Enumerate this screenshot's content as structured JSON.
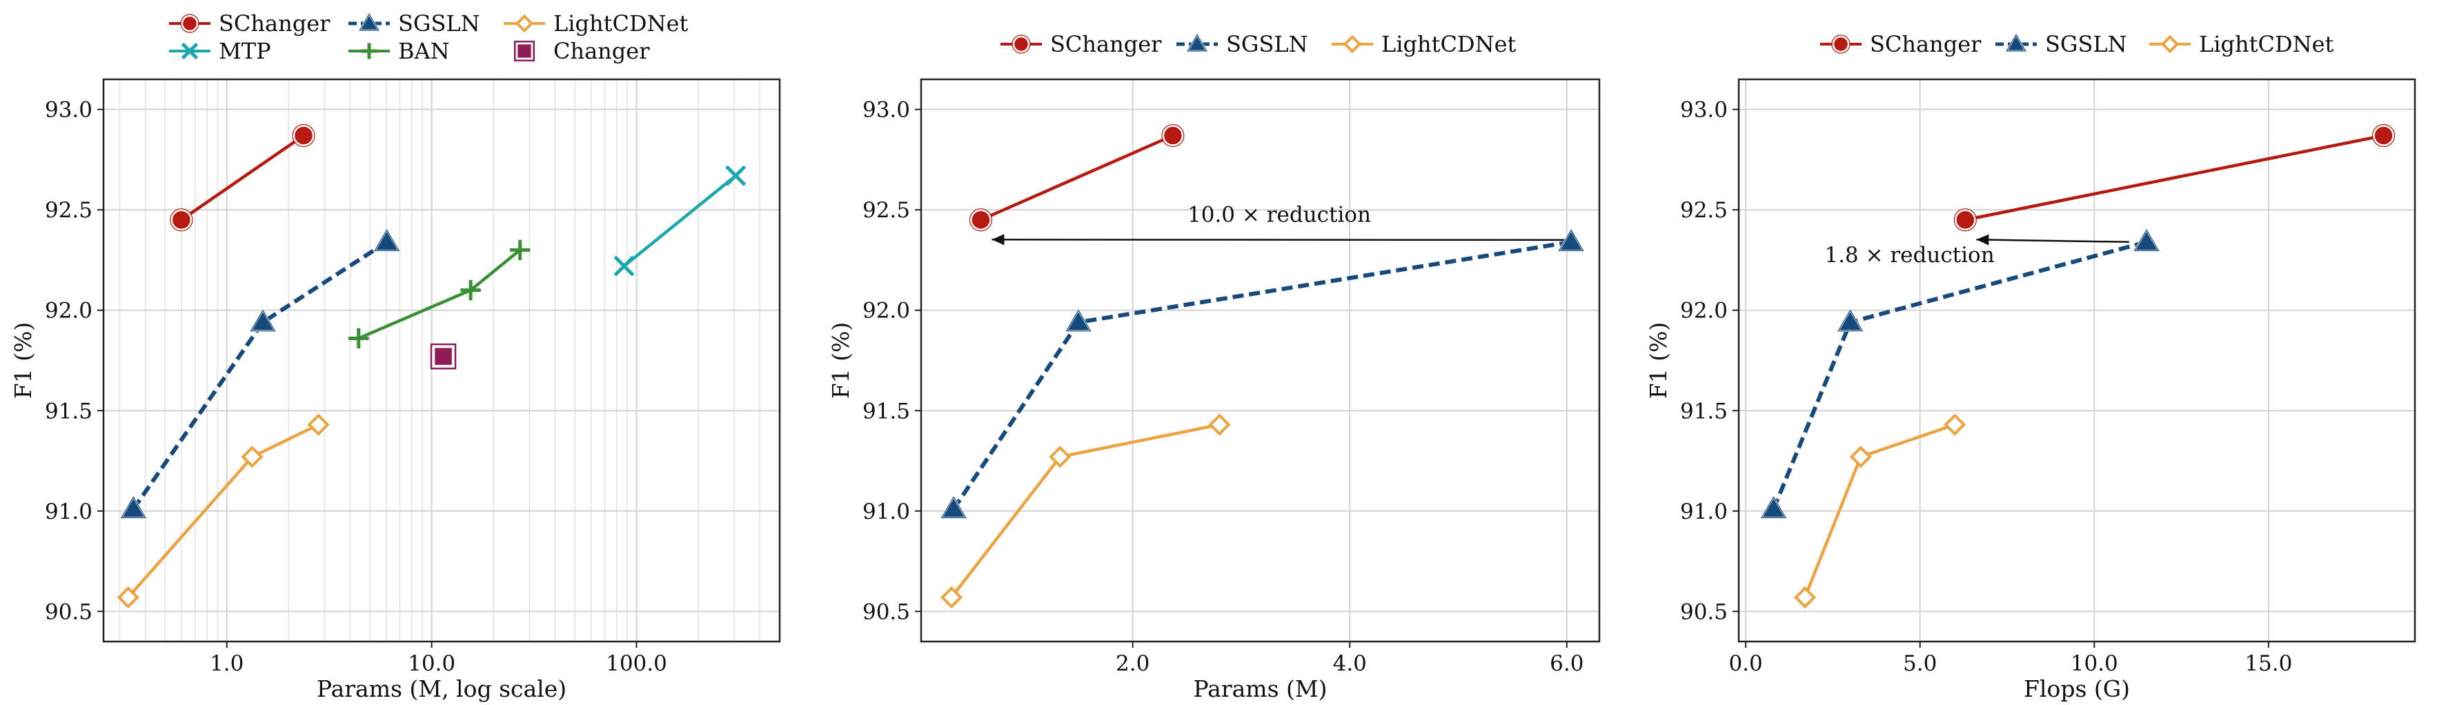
{
  "colors": {
    "SChanger": "#b5190f",
    "SGSLN": "#174a7c",
    "LightCDNet": "#eba441",
    "MTP": "#1aa7b0",
    "BAN": "#3a8e33",
    "Changer": "#8e1a56",
    "grid": "#d4d4d4",
    "axis": "#222222"
  },
  "chart_data": [
    {
      "type": "line",
      "xlabel": "Params (M, log scale)",
      "ylabel": "F1 (%)",
      "xscale": "log",
      "xlim": [
        0.25,
        500
      ],
      "ylim": [
        90.35,
        93.15
      ],
      "xticks": [
        {
          "v": 1,
          "label": "1.0"
        },
        {
          "v": 10,
          "label": "10.0"
        },
        {
          "v": 100,
          "label": "100.0"
        }
      ],
      "yticks": [
        {
          "v": 90.5,
          "label": "90.5"
        },
        {
          "v": 91.0,
          "label": "91.0"
        },
        {
          "v": 91.5,
          "label": "91.5"
        },
        {
          "v": 92.0,
          "label": "92.0"
        },
        {
          "v": 92.5,
          "label": "92.5"
        },
        {
          "v": 93.0,
          "label": "93.0"
        }
      ],
      "grid": true,
      "minor_grid": true,
      "legend_position": "top",
      "legend": [
        "SChanger",
        "SGSLN",
        "LightCDNet",
        "MTP",
        "BAN",
        "Changer"
      ],
      "series": [
        {
          "name": "SChanger",
          "marker": "circle",
          "dash": "solid",
          "x": [
            0.6,
            2.37
          ],
          "y": [
            92.45,
            92.87
          ]
        },
        {
          "name": "SGSLN",
          "marker": "triangle",
          "dash": "dashed",
          "x": [
            0.35,
            1.5,
            6.04
          ],
          "y": [
            91.01,
            91.94,
            92.34
          ]
        },
        {
          "name": "LightCDNet",
          "marker": "diamond",
          "dash": "solid",
          "x": [
            0.33,
            1.33,
            2.8
          ],
          "y": [
            90.57,
            91.27,
            91.43
          ]
        },
        {
          "name": "MTP",
          "marker": "x",
          "dash": "solid",
          "x": [
            87,
            305
          ],
          "y": [
            92.22,
            92.67
          ]
        },
        {
          "name": "BAN",
          "marker": "plus",
          "dash": "solid",
          "x": [
            4.4,
            15.5,
            27
          ],
          "y": [
            91.86,
            92.1,
            92.3
          ]
        },
        {
          "name": "Changer",
          "marker": "square",
          "dash": "none",
          "x": [
            11.4
          ],
          "y": [
            91.77
          ]
        }
      ]
    },
    {
      "type": "line",
      "xlabel": "Params (M)",
      "ylabel": "F1 (%)",
      "xscale": "linear",
      "xlim": [
        0.05,
        6.3
      ],
      "ylim": [
        90.35,
        93.15
      ],
      "xticks": [
        {
          "v": 2,
          "label": "2.0"
        },
        {
          "v": 4,
          "label": "4.0"
        },
        {
          "v": 6,
          "label": "6.0"
        }
      ],
      "yticks": [
        {
          "v": 90.5,
          "label": "90.5"
        },
        {
          "v": 91.0,
          "label": "91.0"
        },
        {
          "v": 91.5,
          "label": "91.5"
        },
        {
          "v": 92.0,
          "label": "92.0"
        },
        {
          "v": 92.5,
          "label": "92.5"
        },
        {
          "v": 93.0,
          "label": "93.0"
        }
      ],
      "grid": true,
      "legend_position": "top",
      "legend": [
        "SChanger",
        "SGSLN",
        "LightCDNet"
      ],
      "series": [
        {
          "name": "SChanger",
          "marker": "circle",
          "dash": "solid",
          "x": [
            0.6,
            2.37
          ],
          "y": [
            92.45,
            92.87
          ]
        },
        {
          "name": "SGSLN",
          "marker": "triangle",
          "dash": "dashed",
          "x": [
            0.35,
            1.5,
            6.04
          ],
          "y": [
            91.01,
            91.94,
            92.34
          ]
        },
        {
          "name": "LightCDNet",
          "marker": "diamond",
          "dash": "solid",
          "x": [
            0.33,
            1.33,
            2.8
          ],
          "y": [
            90.57,
            91.27,
            91.43
          ]
        }
      ],
      "annotation": {
        "text": "10.0 × reduction",
        "from": [
          6.04,
          92.35
        ],
        "to": [
          0.6,
          92.4
        ],
        "text_at": [
          3.35,
          92.44
        ]
      }
    },
    {
      "type": "line",
      "xlabel": "Flops (G)",
      "ylabel": "F1 (%)",
      "xscale": "linear",
      "xlim": [
        -0.2,
        19.2
      ],
      "ylim": [
        90.35,
        93.15
      ],
      "xticks": [
        {
          "v": 0,
          "label": "0.0"
        },
        {
          "v": 5,
          "label": "5.0"
        },
        {
          "v": 10,
          "label": "10.0"
        },
        {
          "v": 15,
          "label": "15.0"
        }
      ],
      "yticks": [
        {
          "v": 90.5,
          "label": "90.5"
        },
        {
          "v": 91.0,
          "label": "91.0"
        },
        {
          "v": 91.5,
          "label": "91.5"
        },
        {
          "v": 92.0,
          "label": "92.0"
        },
        {
          "v": 92.5,
          "label": "92.5"
        },
        {
          "v": 93.0,
          "label": "93.0"
        }
      ],
      "grid": true,
      "legend_position": "top",
      "legend": [
        "SChanger",
        "SGSLN",
        "LightCDNet"
      ],
      "series": [
        {
          "name": "SChanger",
          "marker": "circle",
          "dash": "solid",
          "x": [
            6.3,
            18.3
          ],
          "y": [
            92.45,
            92.87
          ]
        },
        {
          "name": "SGSLN",
          "marker": "triangle",
          "dash": "dashed",
          "x": [
            0.8,
            3.0,
            11.5
          ],
          "y": [
            91.01,
            91.94,
            92.34
          ]
        },
        {
          "name": "LightCDNet",
          "marker": "diamond",
          "dash": "solid",
          "x": [
            1.7,
            3.3,
            6.0
          ],
          "y": [
            90.57,
            91.27,
            91.43
          ]
        }
      ],
      "annotation": {
        "text": "1.8 × reduction",
        "from": [
          11.0,
          92.34
        ],
        "to": [
          6.3,
          92.4
        ],
        "text_at": [
          4.7,
          92.24
        ]
      }
    }
  ]
}
